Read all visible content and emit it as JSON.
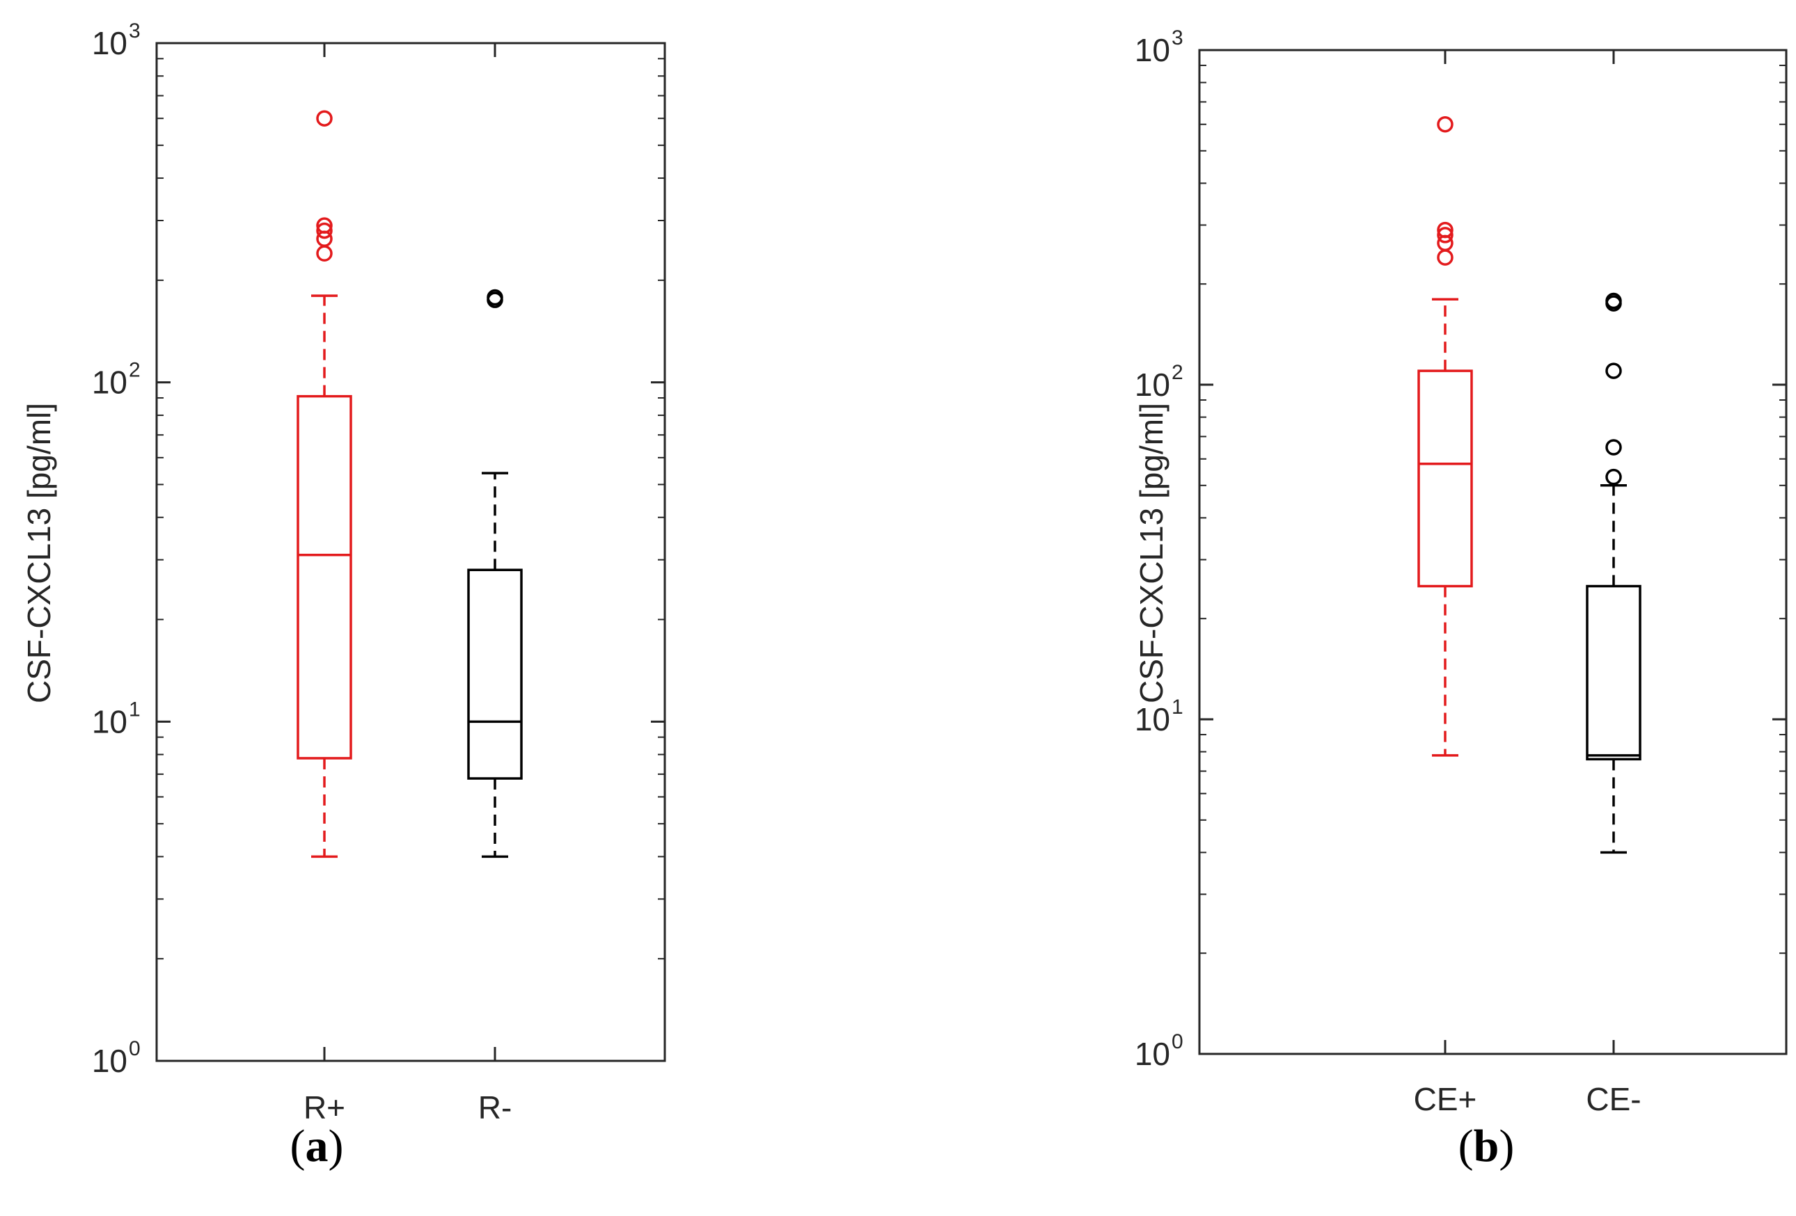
{
  "colors": {
    "red": "#e31a1c",
    "black": "#000000",
    "axis": "#262626"
  },
  "chart_data": [
    {
      "type": "box",
      "panel_label": "(a)",
      "panel_letter": "a",
      "ylabel": "CSF-CXCL13 [pg/ml]",
      "yscale": "log",
      "ylim": [
        1,
        1000
      ],
      "ytick_labels": [
        {
          "base": "10",
          "exp": "0",
          "value": 1
        },
        {
          "base": "10",
          "exp": "1",
          "value": 10
        },
        {
          "base": "10",
          "exp": "2",
          "value": 100
        },
        {
          "base": "10",
          "exp": "3",
          "value": 1000
        }
      ],
      "categories": [
        "R+",
        "R-"
      ],
      "boxes": [
        {
          "name": "R+",
          "color": "red",
          "whisker_low": 4,
          "q1": 7.8,
          "median": 31,
          "q3": 91,
          "whisker_high": 180,
          "outliers": [
            240,
            265,
            280,
            290,
            600
          ]
        },
        {
          "name": "R-",
          "color": "black",
          "whisker_low": 4,
          "q1": 6.8,
          "median": 10,
          "q3": 28,
          "whisker_high": 54,
          "outliers": [
            175,
            178
          ]
        }
      ]
    },
    {
      "type": "box",
      "panel_label": "(b)",
      "panel_letter": "b",
      "ylabel": "CSF-CXCL13 [pg/ml]",
      "yscale": "log",
      "ylim": [
        1,
        1000
      ],
      "ytick_labels": [
        {
          "base": "10",
          "exp": "0",
          "value": 1
        },
        {
          "base": "10",
          "exp": "1",
          "value": 10
        },
        {
          "base": "10",
          "exp": "2",
          "value": 100
        },
        {
          "base": "10",
          "exp": "3",
          "value": 1000
        }
      ],
      "categories": [
        "CE+",
        "CE-"
      ],
      "boxes": [
        {
          "name": "CE+",
          "color": "red",
          "whisker_low": 7.8,
          "q1": 25,
          "median": 58,
          "q3": 110,
          "whisker_high": 180,
          "outliers": [
            240,
            265,
            280,
            290,
            600
          ]
        },
        {
          "name": "CE-",
          "color": "black",
          "whisker_low": 4,
          "q1": 7.6,
          "median": 7.8,
          "q3": 25,
          "whisker_high": 50,
          "outliers": [
            53,
            65,
            110,
            175,
            178
          ]
        }
      ]
    }
  ]
}
